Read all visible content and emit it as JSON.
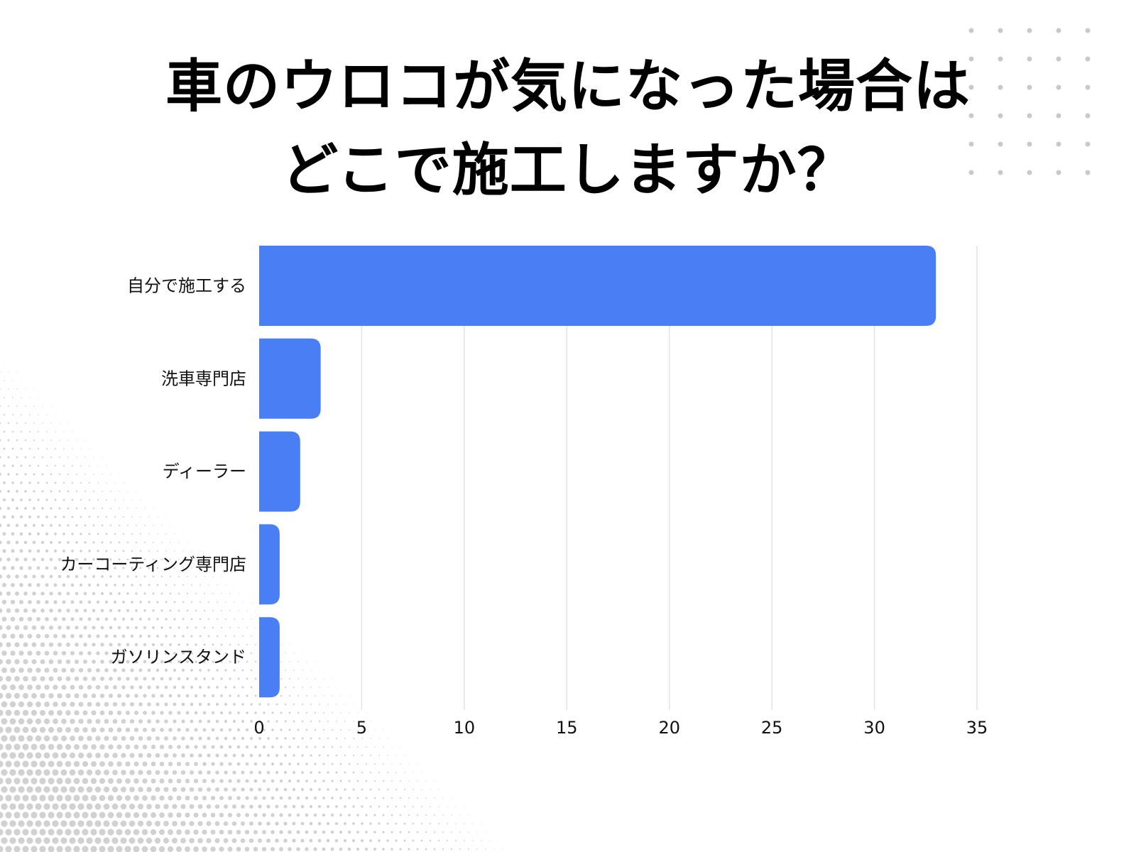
{
  "title": {
    "line1": "車のウロコが気になった場合は",
    "line2": "どこで施工しますか？"
  },
  "colors": {
    "bar": "#4a7ef5",
    "grid": "#e2e2e2",
    "text": "#111111",
    "dots": "#c9c9c9"
  },
  "chart_data": {
    "type": "bar",
    "orientation": "horizontal",
    "categories": [
      "自分で施工する",
      "洗車専門店",
      "ディーラー",
      "カーコーティング専門店",
      "ガソリンスタンド"
    ],
    "values": [
      33,
      3,
      2,
      1,
      1
    ],
    "xlim": [
      0,
      35
    ],
    "xticks": [
      0,
      5,
      10,
      15,
      20,
      25,
      30,
      35
    ],
    "grid": true,
    "legend": "none"
  }
}
